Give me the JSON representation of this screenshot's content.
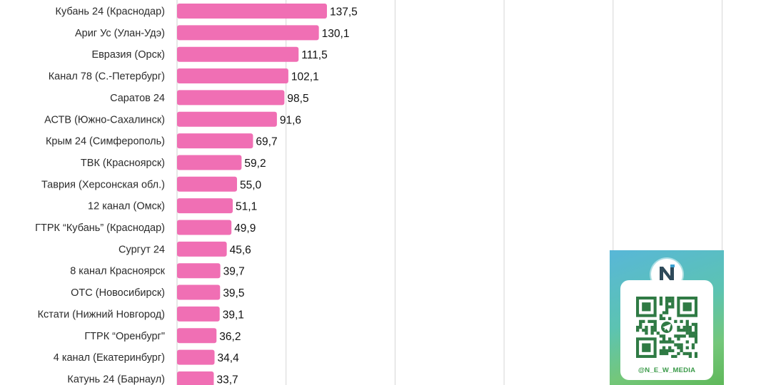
{
  "chart_data": {
    "type": "bar",
    "orientation": "horizontal",
    "categories": [
      "Кубань 24 (Краснодар)",
      "Ариг Ус (Улан-Удэ)",
      "Евразия (Орск)",
      "Канал 78 (С.-Петербург)",
      "Саратов 24",
      "АСТВ (Южно-Сахалинск)",
      "Крым 24 (Симферополь)",
      "ТВК (Красноярск)",
      "Таврия (Херсонская обл.)",
      "12 канал (Омск)",
      "ГТРК “Кубань” (Краснодар)",
      "Сургут 24",
      "8 канал Красноярск",
      "ОТС (Новосибирск)",
      "Кстати (Нижний Новгород)",
      "ГТРК “Оренбург\"",
      "4 канал (Екатеринбург)",
      "Катунь 24 (Барнаул)"
    ],
    "values": [
      137.5,
      130.1,
      111.5,
      102.1,
      98.5,
      91.6,
      69.7,
      59.2,
      55.0,
      51.1,
      49.9,
      45.6,
      39.7,
      39.5,
      39.1,
      36.2,
      34.4,
      33.7
    ],
    "value_labels": [
      "137,5",
      "130,1",
      "111,5",
      "102,1",
      "98,5",
      "91,6",
      "69,7",
      "59,2",
      "55,0",
      "51,1",
      "49,9",
      "45,6",
      "39,7",
      "39,5",
      "39,1",
      "36,2",
      "34,4",
      "33,7"
    ],
    "xlim": [
      0,
      500
    ],
    "gridlines_x": [
      100,
      200,
      300,
      400,
      500
    ],
    "grid": true,
    "bar_color": "#f06fb4"
  },
  "promo": {
    "handle": "@N_E_W_MEDIA",
    "logo_icon": "new-media-logo-icon",
    "qr_icon": "telegram-qr-code-icon",
    "colors": {
      "gradient_start": "#58b7d8",
      "gradient_end": "#5fb85a",
      "handle": "#3a9a48"
    }
  }
}
